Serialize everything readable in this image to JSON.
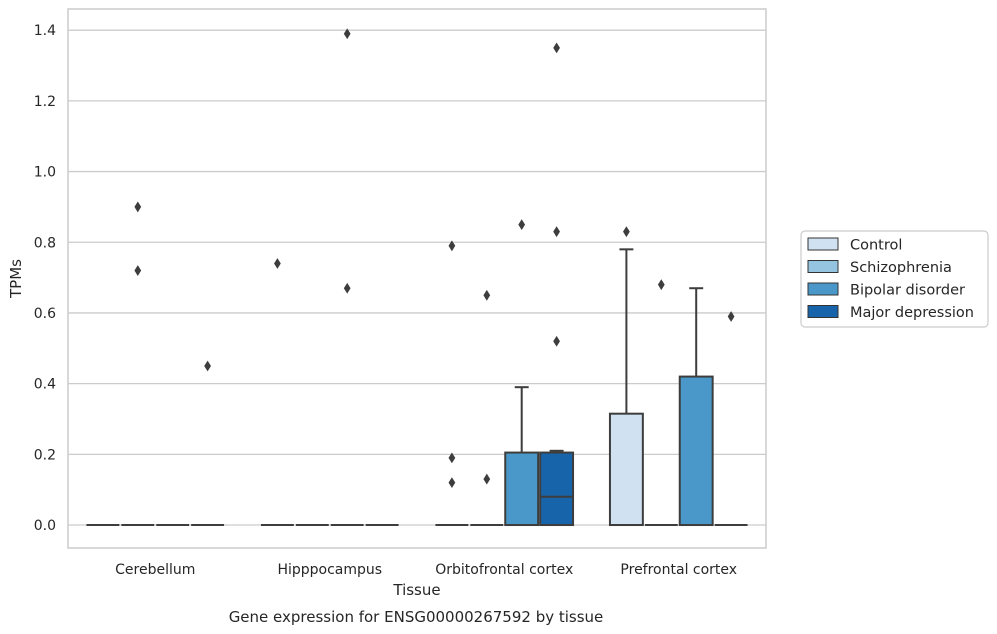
{
  "caption": "Gene expression for ENSG00000267592 by tissue",
  "chart_data": {
    "type": "box",
    "xlabel": "Tissue",
    "ylabel": "TPMs",
    "ylim": [
      -0.065,
      1.46
    ],
    "yticks": [
      0.0,
      0.2,
      0.4,
      0.6,
      0.8,
      1.0,
      1.2,
      1.4
    ],
    "ytick_labels": [
      "0.0",
      "0.2",
      "0.4",
      "0.6",
      "0.8",
      "1.0",
      "1.2",
      "1.4"
    ],
    "grid": "horizontal",
    "legend_placement": "right",
    "categories": [
      "Cerebellum",
      "Hipppocampus",
      "Orbitofrontal cortex",
      "Prefrontal cortex"
    ],
    "series": [
      {
        "name": "Control",
        "color": "#d0e1f2",
        "boxes": [
          {
            "q1": 0,
            "median": 0,
            "q3": 0,
            "whisker_low": 0,
            "whisker_high": 0,
            "outliers": []
          },
          {
            "q1": 0,
            "median": 0,
            "q3": 0,
            "whisker_low": 0,
            "whisker_high": 0,
            "outliers": [
              0.74
            ]
          },
          {
            "q1": 0,
            "median": 0,
            "q3": 0,
            "whisker_low": 0,
            "whisker_high": 0,
            "outliers": [
              0.12,
              0.19,
              0.79
            ]
          },
          {
            "q1": 0,
            "median": 0,
            "q3": 0.315,
            "whisker_low": 0,
            "whisker_high": 0.78,
            "outliers": [
              0.83
            ]
          }
        ]
      },
      {
        "name": "Schizophrenia",
        "color": "#94c4df",
        "boxes": [
          {
            "q1": 0,
            "median": 0,
            "q3": 0,
            "whisker_low": 0,
            "whisker_high": 0,
            "outliers": [
              0.72,
              0.9
            ]
          },
          {
            "q1": 0,
            "median": 0,
            "q3": 0,
            "whisker_low": 0,
            "whisker_high": 0,
            "outliers": []
          },
          {
            "q1": 0,
            "median": 0,
            "q3": 0,
            "whisker_low": 0,
            "whisker_high": 0,
            "outliers": [
              0.13,
              0.65
            ]
          },
          {
            "q1": 0,
            "median": 0,
            "q3": 0,
            "whisker_low": 0,
            "whisker_high": 0,
            "outliers": [
              0.68
            ]
          }
        ]
      },
      {
        "name": "Bipolar disorder",
        "color": "#4a98c9",
        "boxes": [
          {
            "q1": 0,
            "median": 0,
            "q3": 0,
            "whisker_low": 0,
            "whisker_high": 0,
            "outliers": []
          },
          {
            "q1": 0,
            "median": 0,
            "q3": 0,
            "whisker_low": 0,
            "whisker_high": 0,
            "outliers": [
              0.67,
              1.39
            ]
          },
          {
            "q1": 0,
            "median": 0,
            "q3": 0.205,
            "whisker_low": 0,
            "whisker_high": 0.39,
            "outliers": [
              0.85
            ]
          },
          {
            "q1": 0,
            "median": 0,
            "q3": 0.42,
            "whisker_low": 0,
            "whisker_high": 0.67,
            "outliers": []
          }
        ]
      },
      {
        "name": "Major depression",
        "color": "#1764ab",
        "boxes": [
          {
            "q1": 0,
            "median": 0,
            "q3": 0,
            "whisker_low": 0,
            "whisker_high": 0,
            "outliers": [
              0.45
            ]
          },
          {
            "q1": 0,
            "median": 0,
            "q3": 0,
            "whisker_low": 0,
            "whisker_high": 0,
            "outliers": []
          },
          {
            "q1": 0,
            "median": 0.08,
            "q3": 0.205,
            "whisker_low": 0,
            "whisker_high": 0.21,
            "outliers": [
              0.52,
              0.83,
              1.35
            ]
          },
          {
            "q1": 0,
            "median": 0,
            "q3": 0,
            "whisker_low": 0,
            "whisker_high": 0,
            "outliers": [
              0.59
            ]
          }
        ]
      }
    ]
  }
}
